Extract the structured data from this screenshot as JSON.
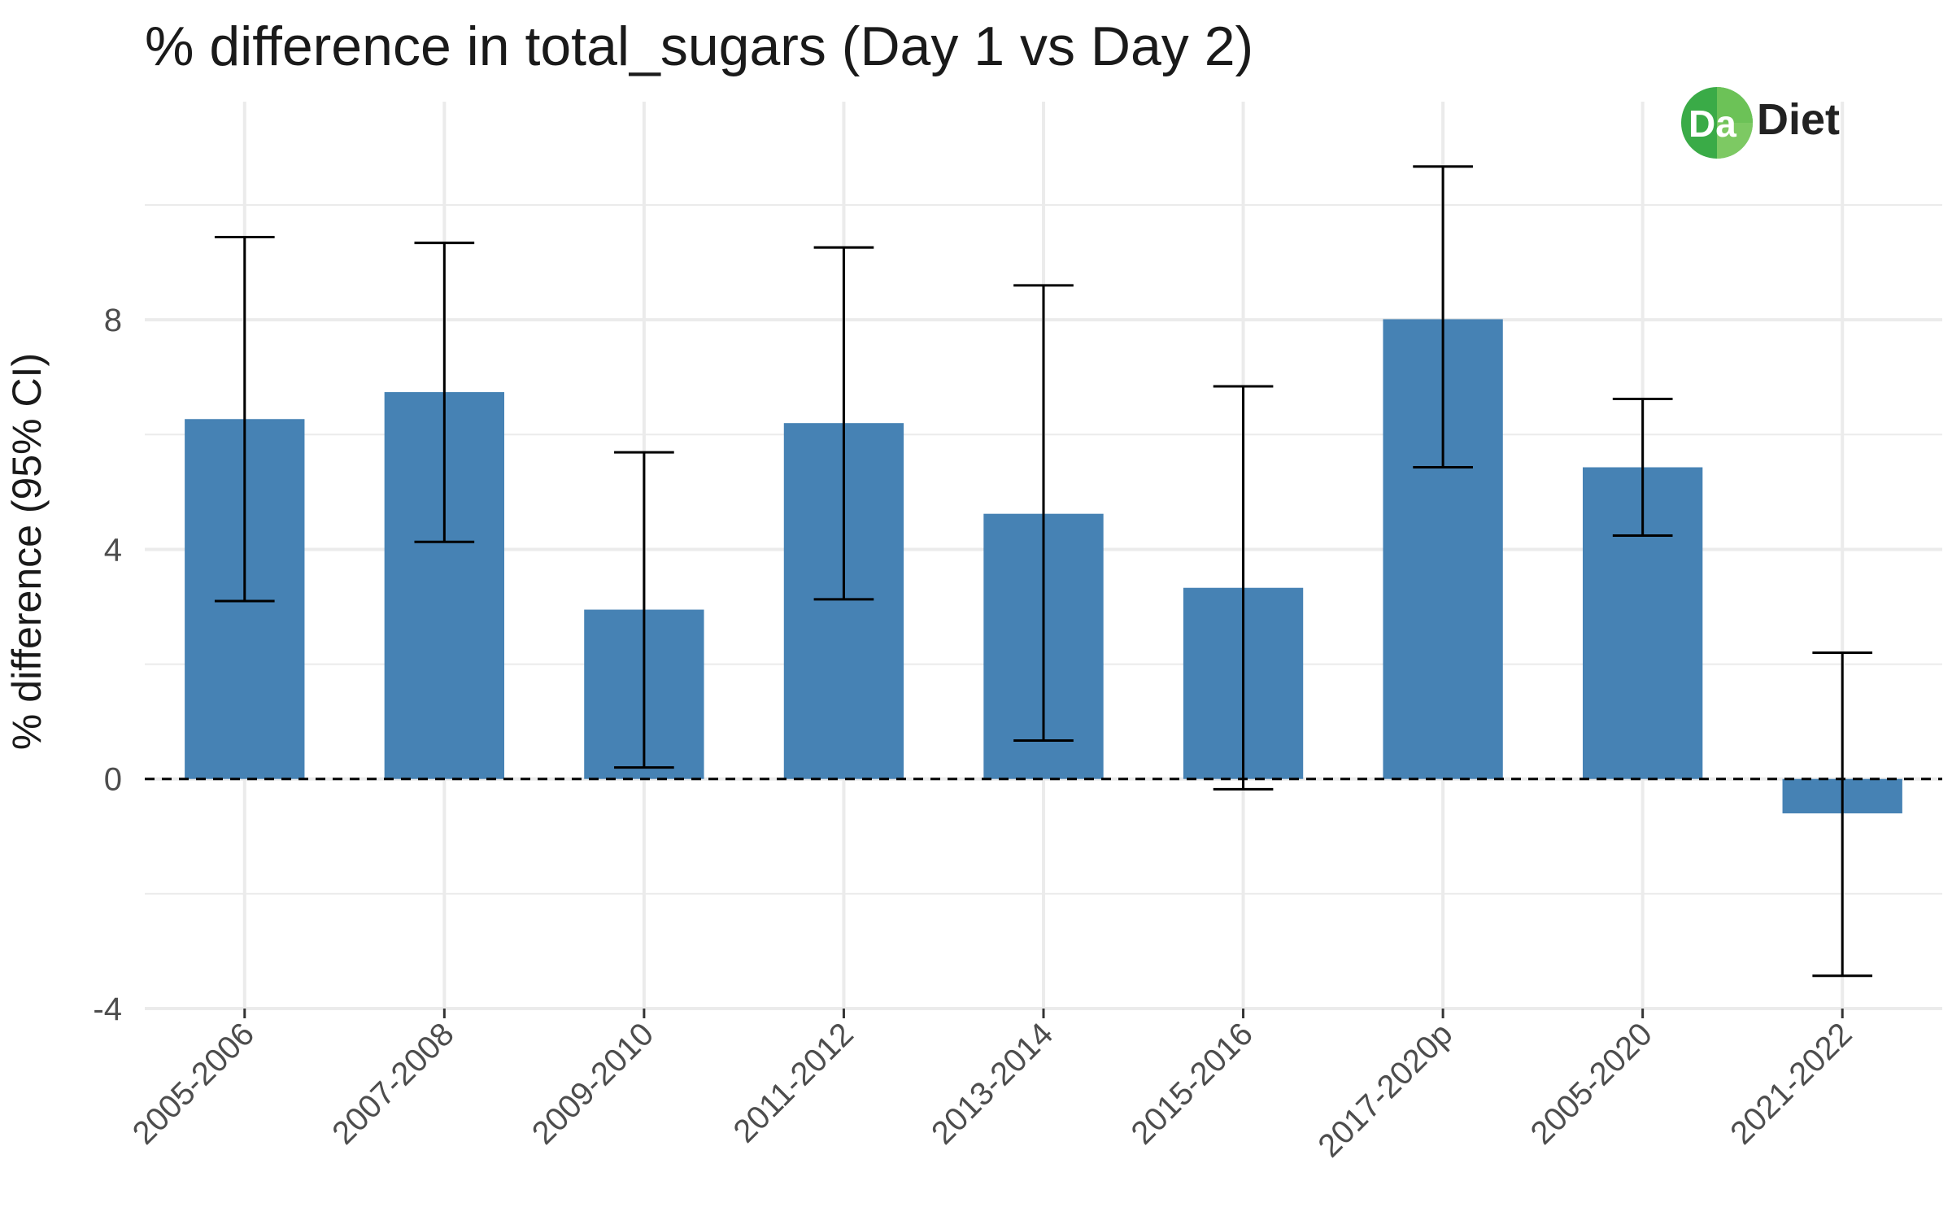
{
  "chart_data": {
    "type": "bar",
    "title": "% difference in total_sugars (Day 1 vs Day 2)",
    "xlabel": "",
    "ylabel": "% difference (95% CI)",
    "categories": [
      "2005-2006",
      "2007-2008",
      "2009-2010",
      "2011-2012",
      "2013-2014",
      "2015-2016",
      "2017-2020p",
      "2005-2020",
      "2021-2022"
    ],
    "values": [
      6.27,
      6.74,
      2.95,
      6.2,
      4.62,
      3.33,
      8.01,
      5.43,
      -0.6
    ],
    "ci_lower": [
      3.1,
      4.13,
      0.2,
      3.13,
      0.67,
      -0.18,
      5.43,
      4.24,
      -3.43
    ],
    "ci_upper": [
      9.44,
      9.34,
      5.69,
      9.26,
      8.6,
      6.84,
      10.67,
      6.62,
      2.2
    ],
    "ylim": [
      -4,
      11.8
    ],
    "yticks": [
      -4,
      0,
      4,
      8
    ],
    "reference_line": 0,
    "grid": true,
    "legend": "none",
    "colors": {
      "bar": "#4682b4",
      "errorbar": "#000000",
      "grid": "#ebebeb"
    }
  },
  "logo": {
    "initials": "Da",
    "word": "Diet",
    "colors": {
      "primary": "#3aab47",
      "light": "#8fd16a"
    }
  }
}
